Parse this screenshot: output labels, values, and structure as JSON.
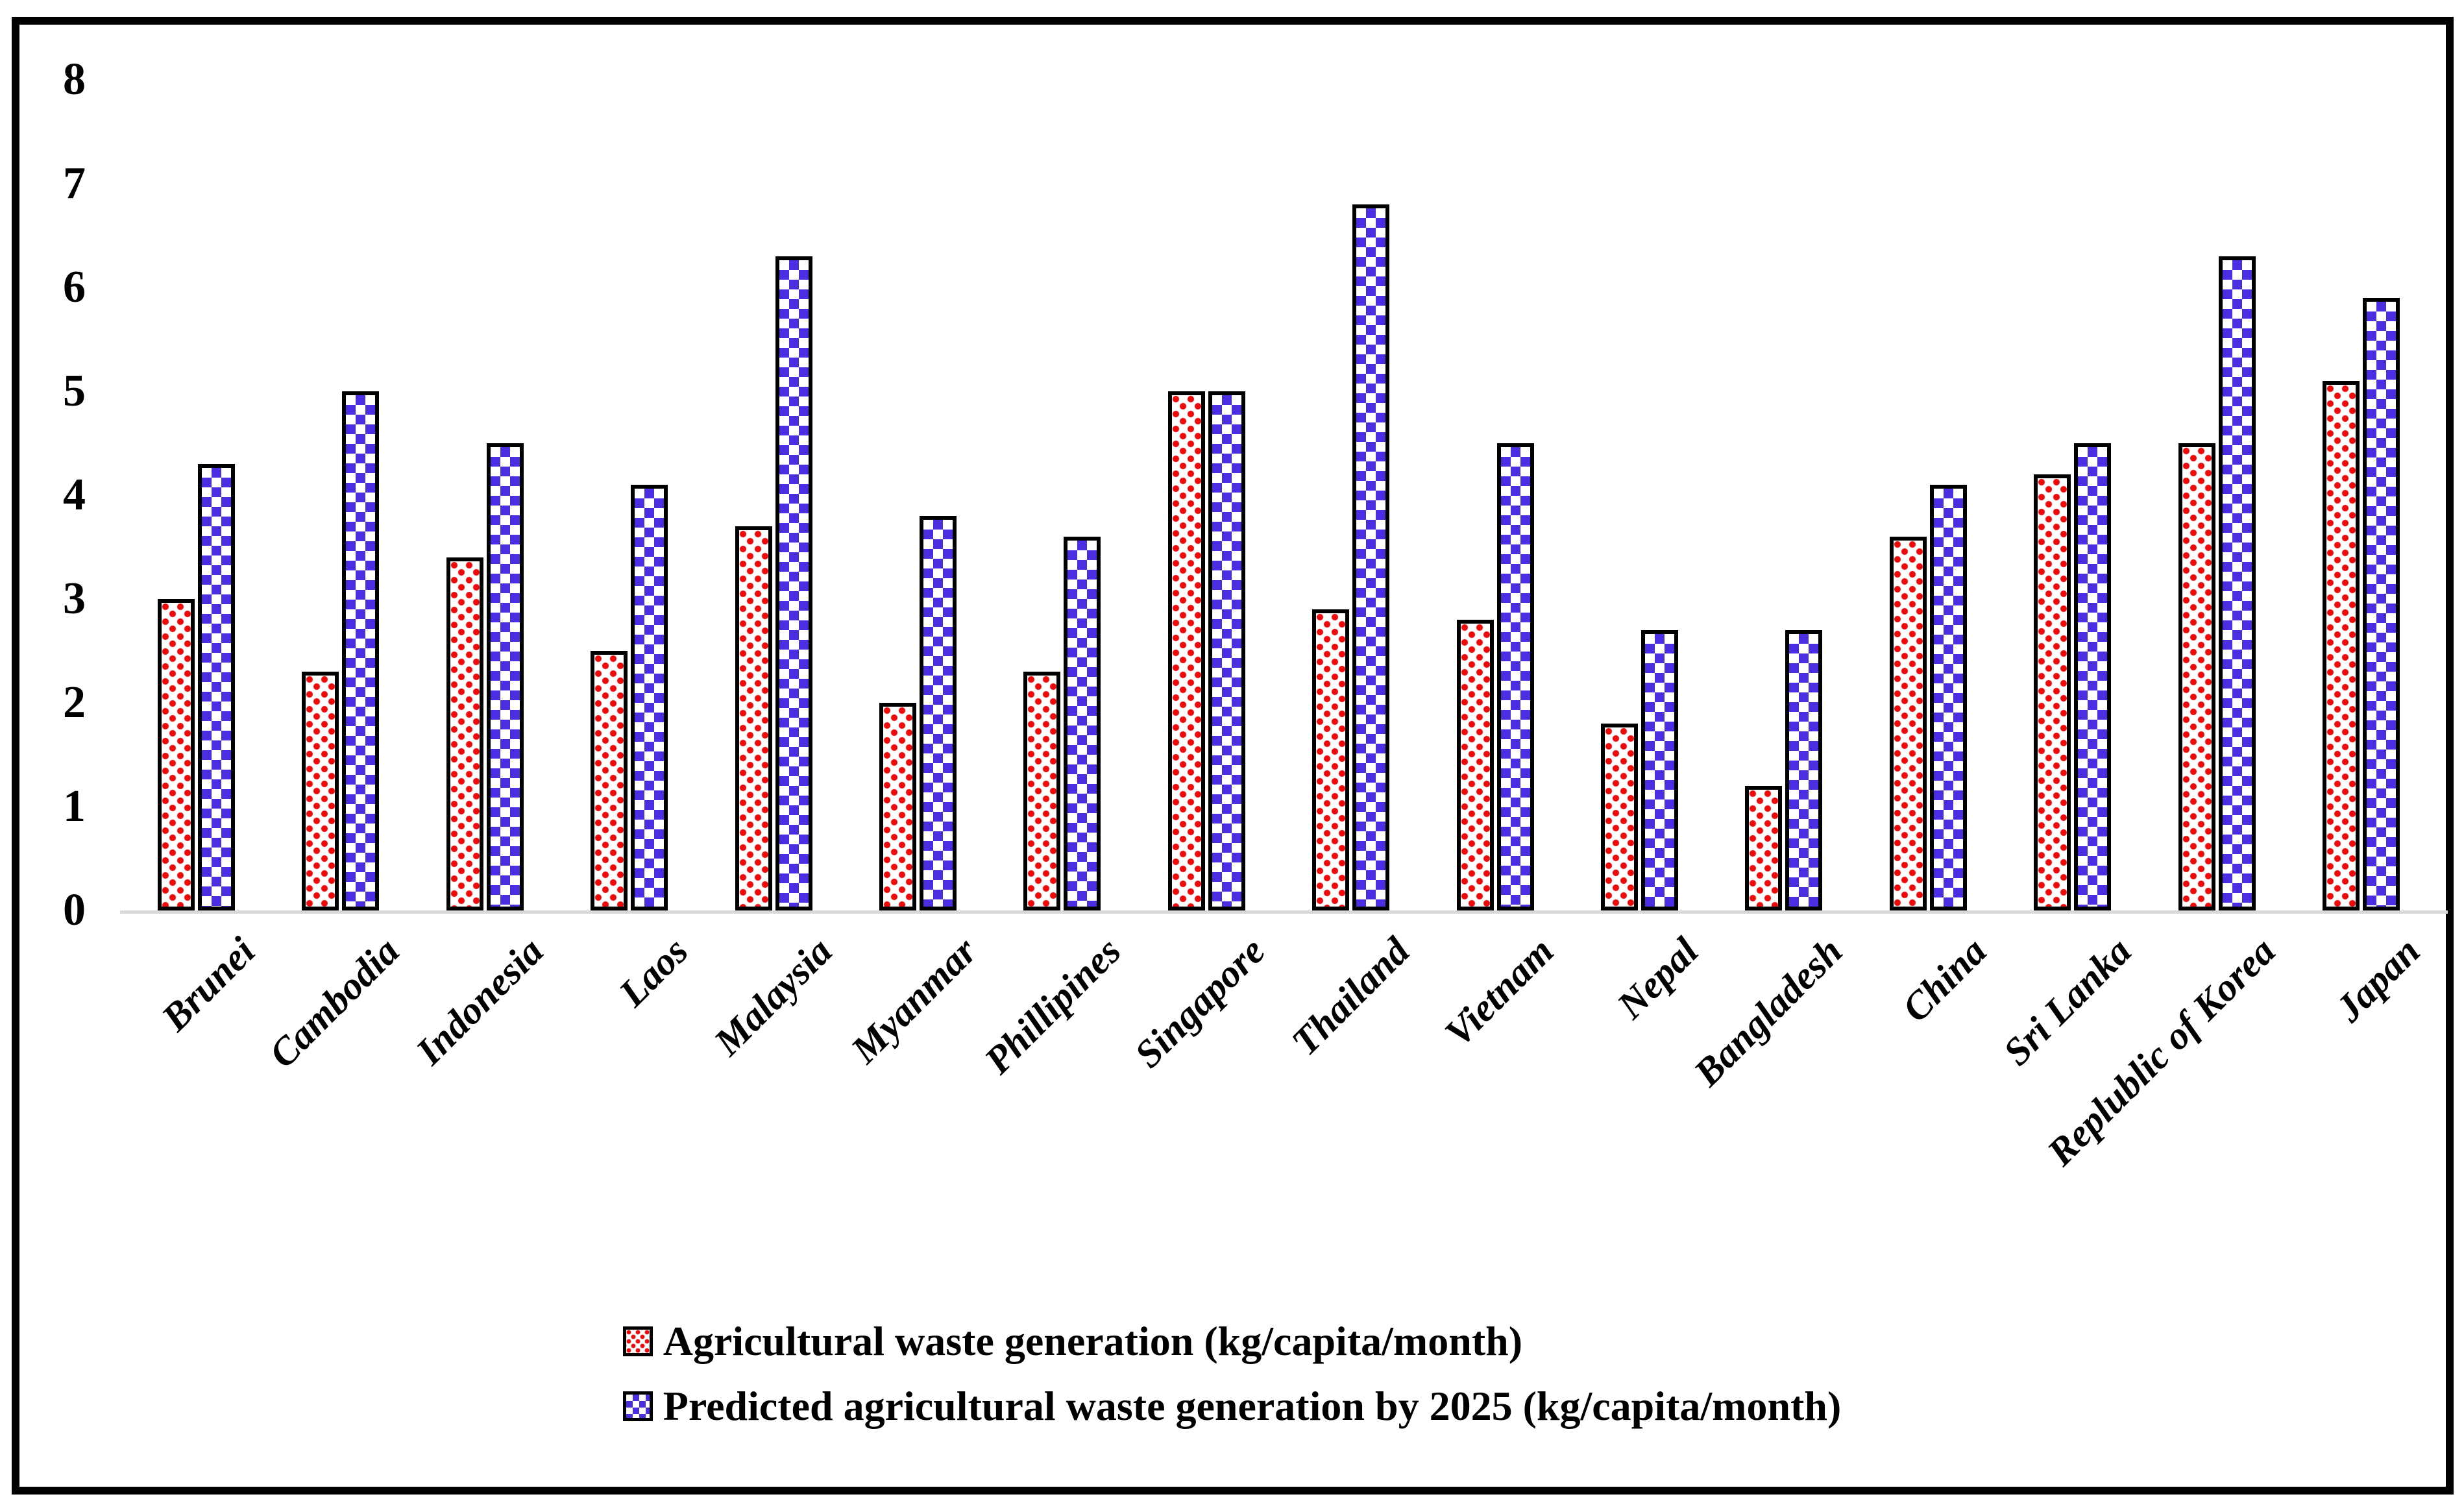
{
  "chart_data": {
    "type": "bar",
    "title": "",
    "xlabel": "",
    "ylabel": "",
    "ylim": [
      0,
      8
    ],
    "yticks": [
      "0",
      "1",
      "2",
      "3",
      "4",
      "5",
      "6",
      "7",
      "8"
    ],
    "grid": false,
    "legend_position": "bottom-center",
    "axis_color": "#d9d9d9",
    "bar_outline_color": "#000000",
    "categories": [
      "Brunei",
      "Cambodia",
      "Indonesia",
      "Laos",
      "Malaysia",
      "Myanmar",
      "Phillipines",
      "Singapore",
      "Thailand",
      "Vietnam",
      "Nepal",
      "Bangladesh",
      "China",
      "Sri Lanka",
      "Replublic of Korea",
      "Japan"
    ],
    "series": [
      {
        "name": "Agricultural waste generation (kg/capita/month)",
        "pattern": "red-dots",
        "color": "#ee0a0a",
        "values": [
          3.0,
          2.3,
          3.4,
          2.5,
          3.7,
          2.0,
          2.3,
          5.0,
          2.9,
          2.8,
          1.8,
          1.2,
          3.6,
          4.2,
          4.5,
          5.1
        ]
      },
      {
        "name": "Predicted agricultural waste generation by 2025 (kg/capita/month)",
        "pattern": "blue-checker",
        "color": "#4b2ee2",
        "values": [
          4.3,
          5.0,
          4.5,
          4.1,
          6.3,
          3.8,
          3.6,
          5.0,
          6.8,
          4.5,
          2.7,
          2.7,
          4.1,
          4.5,
          6.3,
          5.9
        ]
      }
    ]
  }
}
